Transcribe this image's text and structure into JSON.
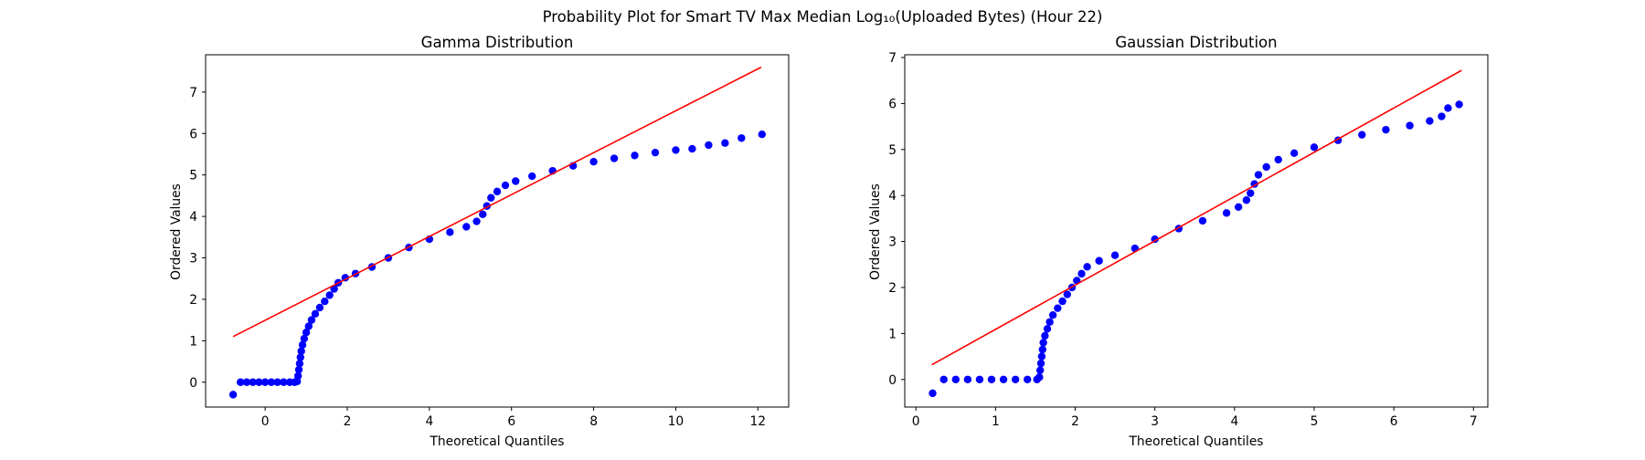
{
  "suptitle": "Probability Plot for Smart TV Max Median Log₁₀(Uploaded Bytes) (Hour 22)",
  "colors": {
    "points": "#0000ff",
    "fit_line": "#ff0000",
    "axes": "#000000",
    "background": "#ffffff"
  },
  "chart_data": [
    {
      "type": "scatter",
      "title": "Gamma Distribution",
      "xlabel": "Theoretical Quantiles",
      "ylabel": "Ordered Values",
      "xlim": [
        -1.45,
        12.75
      ],
      "ylim": [
        -0.6,
        7.9
      ],
      "xticks": [
        0,
        2,
        4,
        6,
        8,
        10,
        12
      ],
      "yticks": [
        0,
        1,
        2,
        3,
        4,
        5,
        6,
        7
      ],
      "grid": false,
      "fit_line": {
        "x": [
          -0.78,
          12.08
        ],
        "y": [
          1.1,
          7.6
        ]
      },
      "points": [
        [
          -0.78,
          -0.3
        ],
        [
          -0.6,
          0.0
        ],
        [
          -0.45,
          0.0
        ],
        [
          -0.3,
          0.0
        ],
        [
          -0.15,
          0.0
        ],
        [
          0.0,
          0.0
        ],
        [
          0.15,
          0.0
        ],
        [
          0.3,
          0.0
        ],
        [
          0.45,
          0.0
        ],
        [
          0.6,
          0.0
        ],
        [
          0.72,
          0.0
        ],
        [
          0.78,
          0.02
        ],
        [
          0.8,
          0.15
        ],
        [
          0.82,
          0.3
        ],
        [
          0.84,
          0.45
        ],
        [
          0.86,
          0.6
        ],
        [
          0.88,
          0.75
        ],
        [
          0.91,
          0.9
        ],
        [
          0.95,
          1.05
        ],
        [
          1.0,
          1.2
        ],
        [
          1.06,
          1.35
        ],
        [
          1.13,
          1.5
        ],
        [
          1.22,
          1.65
        ],
        [
          1.33,
          1.8
        ],
        [
          1.45,
          1.95
        ],
        [
          1.57,
          2.1
        ],
        [
          1.68,
          2.25
        ],
        [
          1.78,
          2.4
        ],
        [
          1.95,
          2.52
        ],
        [
          2.2,
          2.62
        ],
        [
          2.6,
          2.78
        ],
        [
          3.0,
          3.0
        ],
        [
          3.5,
          3.25
        ],
        [
          4.0,
          3.45
        ],
        [
          4.5,
          3.62
        ],
        [
          4.9,
          3.75
        ],
        [
          5.15,
          3.88
        ],
        [
          5.3,
          4.05
        ],
        [
          5.4,
          4.25
        ],
        [
          5.5,
          4.45
        ],
        [
          5.65,
          4.6
        ],
        [
          5.85,
          4.75
        ],
        [
          6.1,
          4.85
        ],
        [
          6.5,
          4.97
        ],
        [
          7.0,
          5.1
        ],
        [
          7.5,
          5.22
        ],
        [
          8.0,
          5.32
        ],
        [
          8.5,
          5.4
        ],
        [
          9.0,
          5.47
        ],
        [
          9.5,
          5.54
        ],
        [
          10.0,
          5.6
        ],
        [
          10.4,
          5.63
        ],
        [
          10.8,
          5.72
        ],
        [
          11.2,
          5.77
        ],
        [
          11.6,
          5.89
        ],
        [
          12.1,
          5.98
        ]
      ]
    },
    {
      "type": "scatter",
      "title": "Gaussian Distribution",
      "xlabel": "Theoretical Quantiles",
      "ylabel": "Ordered Values",
      "xlim": [
        -0.14,
        7.18
      ],
      "ylim": [
        -0.6,
        7.06
      ],
      "xticks": [
        0,
        1,
        2,
        3,
        4,
        5,
        6,
        7
      ],
      "yticks": [
        0,
        1,
        2,
        3,
        4,
        5,
        6,
        7
      ],
      "grid": false,
      "fit_line": {
        "x": [
          0.2,
          6.85
        ],
        "y": [
          0.32,
          6.72
        ]
      },
      "points": [
        [
          0.21,
          -0.3
        ],
        [
          0.35,
          0.0
        ],
        [
          0.5,
          0.0
        ],
        [
          0.65,
          0.0
        ],
        [
          0.8,
          0.0
        ],
        [
          0.95,
          0.0
        ],
        [
          1.1,
          0.0
        ],
        [
          1.25,
          0.0
        ],
        [
          1.4,
          0.0
        ],
        [
          1.52,
          0.0
        ],
        [
          1.55,
          0.05
        ],
        [
          1.56,
          0.2
        ],
        [
          1.57,
          0.35
        ],
        [
          1.58,
          0.5
        ],
        [
          1.59,
          0.65
        ],
        [
          1.6,
          0.8
        ],
        [
          1.62,
          0.95
        ],
        [
          1.65,
          1.1
        ],
        [
          1.68,
          1.25
        ],
        [
          1.72,
          1.4
        ],
        [
          1.78,
          1.55
        ],
        [
          1.84,
          1.7
        ],
        [
          1.9,
          1.85
        ],
        [
          1.96,
          2.0
        ],
        [
          2.02,
          2.15
        ],
        [
          2.08,
          2.3
        ],
        [
          2.15,
          2.45
        ],
        [
          2.3,
          2.58
        ],
        [
          2.5,
          2.7
        ],
        [
          2.75,
          2.85
        ],
        [
          3.0,
          3.05
        ],
        [
          3.3,
          3.28
        ],
        [
          3.6,
          3.45
        ],
        [
          3.9,
          3.62
        ],
        [
          4.05,
          3.75
        ],
        [
          4.15,
          3.9
        ],
        [
          4.2,
          4.05
        ],
        [
          4.25,
          4.25
        ],
        [
          4.3,
          4.45
        ],
        [
          4.4,
          4.62
        ],
        [
          4.55,
          4.78
        ],
        [
          4.75,
          4.92
        ],
        [
          5.0,
          5.05
        ],
        [
          5.3,
          5.2
        ],
        [
          5.6,
          5.32
        ],
        [
          5.9,
          5.43
        ],
        [
          6.2,
          5.52
        ],
        [
          6.45,
          5.62
        ],
        [
          6.6,
          5.72
        ],
        [
          6.68,
          5.9
        ],
        [
          6.82,
          5.98
        ]
      ]
    }
  ]
}
